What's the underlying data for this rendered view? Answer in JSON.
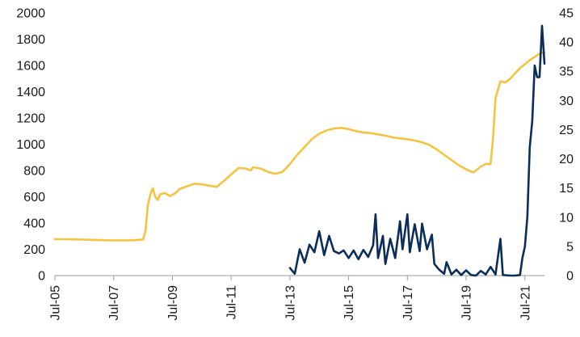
{
  "chart_data": {
    "type": "line",
    "title": "",
    "xlabel": "",
    "ylabel_left": "",
    "ylabel_right": "",
    "x_tick_labels": [
      "Jul-05",
      "Jul-07",
      "Jul-09",
      "Jul-11",
      "Jul-13",
      "Jul-15",
      "Jul-17",
      "Jul-19",
      "Jul-21"
    ],
    "x_range": [
      "2005-07",
      "2022-03"
    ],
    "y_left": {
      "range": [
        0,
        2000
      ],
      "ticks": [
        0,
        200,
        400,
        600,
        800,
        1000,
        1200,
        1400,
        1600,
        1800,
        2000
      ]
    },
    "y_right": {
      "range": [
        0,
        45
      ],
      "ticks": [
        0,
        5,
        10,
        15,
        20,
        25,
        30,
        35,
        40,
        45
      ]
    },
    "grid": false,
    "legend": "none",
    "series": [
      {
        "color": "#F5C342",
        "axis": "left",
        "points": [
          [
            "2005-07",
            278
          ],
          [
            "2005-10",
            277
          ],
          [
            "2006-01",
            276
          ],
          [
            "2006-04",
            275
          ],
          [
            "2006-07",
            274
          ],
          [
            "2006-10",
            272
          ],
          [
            "2007-01",
            270
          ],
          [
            "2007-04",
            269
          ],
          [
            "2007-07",
            268
          ],
          [
            "2007-10",
            268
          ],
          [
            "2008-01",
            268
          ],
          [
            "2008-04",
            270
          ],
          [
            "2008-07",
            275
          ],
          [
            "2008-08",
            340
          ],
          [
            "2008-09",
            540
          ],
          [
            "2008-10",
            620
          ],
          [
            "2008-11",
            665
          ],
          [
            "2008-12",
            600
          ],
          [
            "2009-01",
            575
          ],
          [
            "2009-02",
            620
          ],
          [
            "2009-04",
            628
          ],
          [
            "2009-06",
            605
          ],
          [
            "2009-08",
            625
          ],
          [
            "2009-10",
            660
          ],
          [
            "2010-01",
            680
          ],
          [
            "2010-04",
            700
          ],
          [
            "2010-07",
            695
          ],
          [
            "2010-10",
            685
          ],
          [
            "2011-01",
            675
          ],
          [
            "2011-04",
            720
          ],
          [
            "2011-07",
            770
          ],
          [
            "2011-10",
            820
          ],
          [
            "2012-01",
            815
          ],
          [
            "2012-03",
            800
          ],
          [
            "2012-04",
            825
          ],
          [
            "2012-07",
            815
          ],
          [
            "2012-10",
            790
          ],
          [
            "2013-01",
            775
          ],
          [
            "2013-04",
            790
          ],
          [
            "2013-07",
            850
          ],
          [
            "2013-10",
            920
          ],
          [
            "2014-01",
            980
          ],
          [
            "2014-04",
            1040
          ],
          [
            "2014-07",
            1080
          ],
          [
            "2014-10",
            1105
          ],
          [
            "2015-01",
            1120
          ],
          [
            "2015-04",
            1125
          ],
          [
            "2015-07",
            1115
          ],
          [
            "2015-10",
            1100
          ],
          [
            "2016-01",
            1090
          ],
          [
            "2016-04",
            1085
          ],
          [
            "2016-07",
            1075
          ],
          [
            "2016-10",
            1065
          ],
          [
            "2017-01",
            1052
          ],
          [
            "2017-04",
            1045
          ],
          [
            "2017-07",
            1038
          ],
          [
            "2017-10",
            1028
          ],
          [
            "2018-01",
            1015
          ],
          [
            "2018-04",
            995
          ],
          [
            "2018-07",
            960
          ],
          [
            "2018-10",
            920
          ],
          [
            "2019-01",
            880
          ],
          [
            "2019-04",
            840
          ],
          [
            "2019-07",
            810
          ],
          [
            "2019-10",
            785
          ],
          [
            "2020-01",
            830
          ],
          [
            "2020-03",
            850
          ],
          [
            "2020-05",
            850
          ],
          [
            "2020-06",
            1050
          ],
          [
            "2020-07",
            1350
          ],
          [
            "2020-09",
            1480
          ],
          [
            "2020-11",
            1470
          ],
          [
            "2021-01",
            1500
          ],
          [
            "2021-03",
            1540
          ],
          [
            "2021-05",
            1580
          ],
          [
            "2021-07",
            1610
          ],
          [
            "2021-09",
            1640
          ],
          [
            "2021-11",
            1665
          ],
          [
            "2022-01",
            1690
          ],
          [
            "2022-03",
            1700
          ]
        ]
      },
      {
        "color": "#0B2D5B",
        "axis": "right",
        "points": [
          [
            "2013-07",
            1.3
          ],
          [
            "2013-09",
            0.3
          ],
          [
            "2013-11",
            4.5
          ],
          [
            "2014-01",
            2.2
          ],
          [
            "2014-03",
            5.3
          ],
          [
            "2014-05",
            4.0
          ],
          [
            "2014-07",
            7.6
          ],
          [
            "2014-09",
            3.5
          ],
          [
            "2014-11",
            6.8
          ],
          [
            "2015-01",
            4.2
          ],
          [
            "2015-03",
            3.8
          ],
          [
            "2015-05",
            4.3
          ],
          [
            "2015-07",
            3.0
          ],
          [
            "2015-09",
            4.3
          ],
          [
            "2015-11",
            2.8
          ],
          [
            "2016-01",
            4.4
          ],
          [
            "2016-03",
            3.2
          ],
          [
            "2016-05",
            5.2
          ],
          [
            "2016-06",
            10.5
          ],
          [
            "2016-07",
            3.0
          ],
          [
            "2016-09",
            6.8
          ],
          [
            "2016-10",
            2.0
          ],
          [
            "2016-12",
            6.3
          ],
          [
            "2017-02",
            3.0
          ],
          [
            "2017-04",
            9.3
          ],
          [
            "2017-05",
            4.5
          ],
          [
            "2017-07",
            10.5
          ],
          [
            "2017-08",
            4.0
          ],
          [
            "2017-10",
            8.8
          ],
          [
            "2017-12",
            4.2
          ],
          [
            "2018-01",
            8.9
          ],
          [
            "2018-03",
            4.5
          ],
          [
            "2018-05",
            7.0
          ],
          [
            "2018-06",
            2.0
          ],
          [
            "2018-08",
            1.0
          ],
          [
            "2018-10",
            0.3
          ],
          [
            "2018-11",
            2.3
          ],
          [
            "2019-01",
            0.2
          ],
          [
            "2019-03",
            1.0
          ],
          [
            "2019-05",
            0.1
          ],
          [
            "2019-07",
            0.9
          ],
          [
            "2019-09",
            0.1
          ],
          [
            "2019-11",
            0.0
          ],
          [
            "2020-01",
            0.8
          ],
          [
            "2020-03",
            0.2
          ],
          [
            "2020-05",
            1.5
          ],
          [
            "2020-07",
            0.2
          ],
          [
            "2020-09",
            6.3
          ],
          [
            "2020-10",
            0.1
          ],
          [
            "2021-01",
            0.0
          ],
          [
            "2021-03",
            0.0
          ],
          [
            "2021-05",
            0.1
          ],
          [
            "2021-06",
            3.0
          ],
          [
            "2021-07",
            5.0
          ],
          [
            "2021-08",
            10.0
          ],
          [
            "2021-09",
            22.0
          ],
          [
            "2021-10",
            26.5
          ],
          [
            "2021-11",
            36.0
          ],
          [
            "2021-12",
            34.0
          ],
          [
            "2022-01",
            34.0
          ],
          [
            "2022-02",
            42.8
          ],
          [
            "2022-03",
            36.3
          ]
        ]
      }
    ]
  }
}
